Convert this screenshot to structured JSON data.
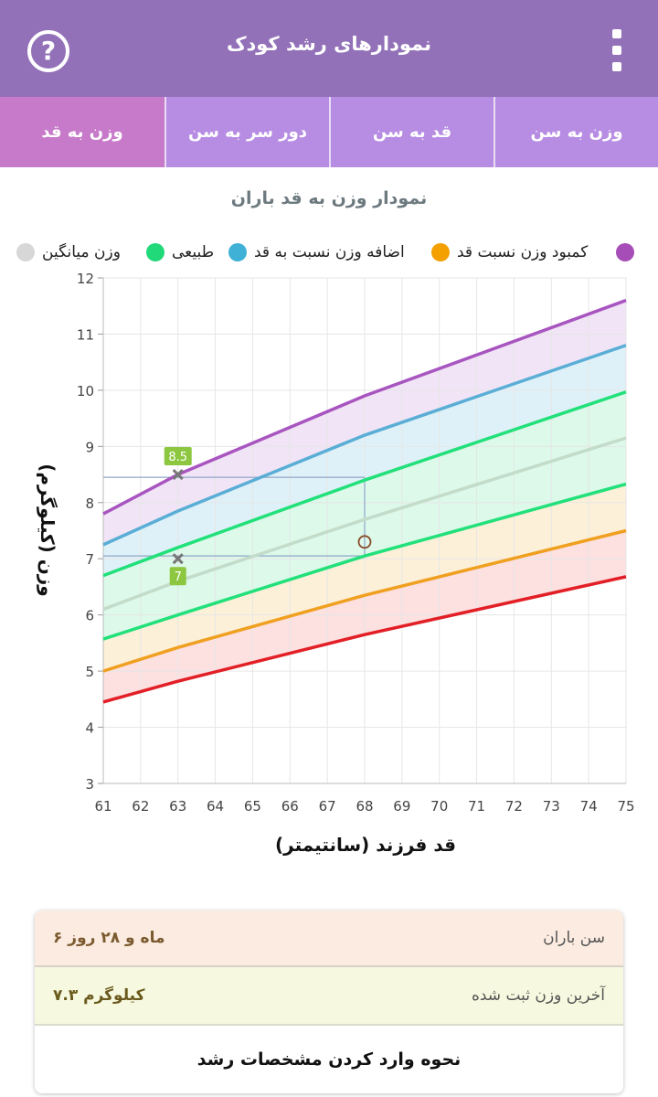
{
  "app": {
    "title": "نمودارهای رشد کودک",
    "help_icon": "help-circle-icon",
    "menu_icon": "overflow-menu-icon"
  },
  "tabs": [
    {
      "label": "وزن به قد",
      "active": true
    },
    {
      "label": "دور سر به سن",
      "active": false
    },
    {
      "label": "قد به سن",
      "active": false
    },
    {
      "label": "وزن به سن",
      "active": false
    }
  ],
  "legend": [
    {
      "label": "کمبود وزن نسبت قد",
      "color": "#a74db8"
    },
    {
      "label": "اضافه وزن نسبت به قد",
      "color": "#f4a000"
    },
    {
      "label": "طبیعی",
      "color": "#3fb0d6"
    },
    {
      "label": "وزن میانگین",
      "color": "#22d97a"
    },
    {
      "label": "",
      "color": "#d7d7d7"
    }
  ],
  "chart_data": {
    "type": "line",
    "title": "نمودار وزن به قد باران",
    "xlabel": "قد فرزند (سانتیمتر)",
    "ylabel": "وزن (کیلوگرم)",
    "xlim": [
      61,
      75
    ],
    "ylim": [
      3,
      12
    ],
    "x_ticks": [
      61,
      62,
      63,
      64,
      65,
      66,
      67,
      68,
      69,
      70,
      71,
      72,
      73,
      74,
      75
    ],
    "y_ticks": [
      3,
      4,
      5,
      6,
      7,
      8,
      9,
      10,
      11,
      12
    ],
    "grid": true,
    "curves": [
      {
        "color": "#a855c0",
        "x": [
          61,
          63,
          68,
          75
        ],
        "y": [
          7.8,
          8.5,
          9.9,
          11.6
        ],
        "fill": "#f1e4f6"
      },
      {
        "color": "#5aaed6",
        "x": [
          61,
          63,
          68,
          75
        ],
        "y": [
          7.25,
          7.85,
          9.2,
          10.8
        ],
        "fill": "#dff1f8"
      },
      {
        "color": "#22e07a",
        "x": [
          61,
          63,
          68,
          75
        ],
        "y": [
          6.7,
          7.2,
          8.4,
          9.97
        ],
        "fill": "#dcf9ea"
      },
      {
        "color": "#c3dcc9",
        "x": [
          61,
          63,
          68,
          75
        ],
        "y": [
          6.1,
          6.6,
          7.7,
          9.15
        ],
        "fill": "#dcf9ea"
      },
      {
        "color": "#22e07a",
        "x": [
          61,
          63,
          68,
          75
        ],
        "y": [
          5.57,
          6.0,
          7.05,
          8.33
        ],
        "fill": "#fdf0d9"
      },
      {
        "color": "#f0a020",
        "x": [
          61,
          63,
          68,
          75
        ],
        "y": [
          5.0,
          5.42,
          6.35,
          7.5
        ],
        "fill": "#fde0e0"
      },
      {
        "color": "#e21f26",
        "x": [
          61,
          63,
          68,
          75
        ],
        "y": [
          4.45,
          4.82,
          5.65,
          6.68
        ],
        "fill": ""
      }
    ],
    "points": [
      {
        "x": 63,
        "y": 8.5,
        "label": "8.5",
        "marker": "x"
      },
      {
        "x": 63,
        "y": 7.0,
        "label": "7",
        "marker": "x"
      },
      {
        "x": 68,
        "y": 7.3,
        "label": "",
        "marker": "circle"
      }
    ],
    "guides": [
      {
        "from": [
          61,
          8.45
        ],
        "to": [
          68,
          8.45
        ]
      },
      {
        "from": [
          61,
          7.05
        ],
        "to": [
          68,
          7.05
        ]
      },
      {
        "from": [
          68,
          7.05
        ],
        "to": [
          68,
          8.45
        ]
      }
    ]
  },
  "info": {
    "age_label": "سن باران",
    "age_value": "۶ ماه و ۲۸ روز",
    "weight_label": "آخرین وزن ثبت شده",
    "weight_value": "۷.۳ کیلوگرم",
    "help_link": "نحوه وارد کردن مشخصات رشد"
  }
}
